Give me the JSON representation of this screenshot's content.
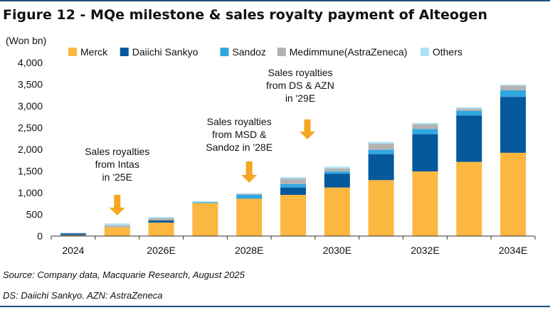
{
  "figure_title": "Figure 12 - MQe milestone & sales royalty payment of Alteogen",
  "source_note": "Source: Company data, Macquarie Research, August 2025",
  "abbrev_note": "DS: Daiichi Sankyo. AZN: AstraZeneca",
  "colors": {
    "Merck": "#fbb740",
    "Daiichi Sankyo": "#05589b",
    "Sandoz": "#31a7e0",
    "Medimmune(AstraZeneca)": "#b3b3b3",
    "Others": "#aee2f5",
    "arrow": "#f5a623",
    "rule": "#1f4e79"
  },
  "chart_data": {
    "type": "bar",
    "stacked": true,
    "title": "",
    "ylabel": "(Won bn)",
    "xlabel": "",
    "ylim": [
      0,
      4000
    ],
    "yticks": [
      "0",
      "500",
      "1,000",
      "1,500",
      "2,000",
      "2,500",
      "3,000",
      "3,500",
      "4,000"
    ],
    "ytick_values": [
      0,
      500,
      1000,
      1500,
      2000,
      2500,
      3000,
      3500,
      4000
    ],
    "grid": false,
    "legend": "top",
    "categories": [
      "2024",
      "2025E",
      "2026E",
      "2027E",
      "2028E",
      "2029E",
      "2030E",
      "2031E",
      "2032E",
      "2033E",
      "2034E"
    ],
    "xtick_labels": [
      "2024",
      "",
      "2026E",
      "",
      "2028E",
      "",
      "2030E",
      "",
      "2032E",
      "",
      "2034E"
    ],
    "series": [
      {
        "name": "Merck",
        "values": [
          20,
          200,
          310,
          760,
          860,
          950,
          1120,
          1290,
          1490,
          1710,
          1920
        ]
      },
      {
        "name": "Daiichi Sankyo",
        "values": [
          40,
          0,
          50,
          0,
          0,
          170,
          320,
          600,
          860,
          1070,
          1290
        ]
      },
      {
        "name": "Sandoz",
        "values": [
          0,
          0,
          0,
          20,
          90,
          80,
          50,
          100,
          120,
          110,
          150
        ]
      },
      {
        "name": "Medimmune(AstraZeneca)",
        "values": [
          10,
          50,
          50,
          0,
          20,
          120,
          70,
          140,
          110,
          50,
          110
        ]
      },
      {
        "name": "Others",
        "values": [
          10,
          40,
          30,
          20,
          20,
          40,
          40,
          40,
          30,
          30,
          20
        ]
      }
    ],
    "annotations": [
      {
        "category": "2025E",
        "lines": [
          "Sales royalties",
          "from Intas",
          "in '25E"
        ]
      },
      {
        "category": "2028E",
        "lines": [
          "Sales royalties",
          "from MSD &",
          "Sandoz in '28E"
        ]
      },
      {
        "category": "2029E",
        "lines": [
          "Sales royalties",
          "from DS & AZN",
          "in '29E"
        ]
      }
    ]
  }
}
